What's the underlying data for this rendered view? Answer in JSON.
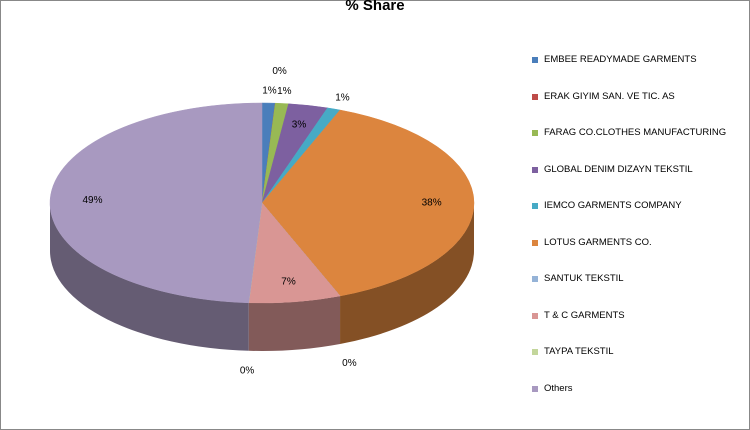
{
  "chart_data": {
    "type": "pie",
    "title": "% Share",
    "categories": [
      "EMBEE READYMADE GARMENTS",
      "ERAK GIYIM  SAN. VE TIC.  AS",
      "FARAG CO.CLOTHES  MANUFACTURING",
      "GLOBAL DENIM  DIZAYN TEKSTIL",
      "IEMCO GARMENTS  COMPANY",
      "LOTUS GARMENTS  CO.",
      "SANTUK TEKSTIL",
      "T & C GARMENTS",
      "TAYPA TEKSTIL",
      "Others"
    ],
    "values": [
      1,
      0,
      1,
      3,
      1,
      38,
      0,
      7,
      0,
      49
    ],
    "value_labels": [
      "1%",
      "0%",
      "1%",
      "3%",
      "1%",
      "38%",
      "0%",
      "7%",
      "0%",
      "49%"
    ],
    "colors": [
      "#4a7ebb",
      "#be4b48",
      "#98b954",
      "#7d60a0",
      "#46aac5",
      "#dc853e",
      "#95b3d7",
      "#d99694",
      "#c3d69b",
      "#a899c0"
    ]
  }
}
